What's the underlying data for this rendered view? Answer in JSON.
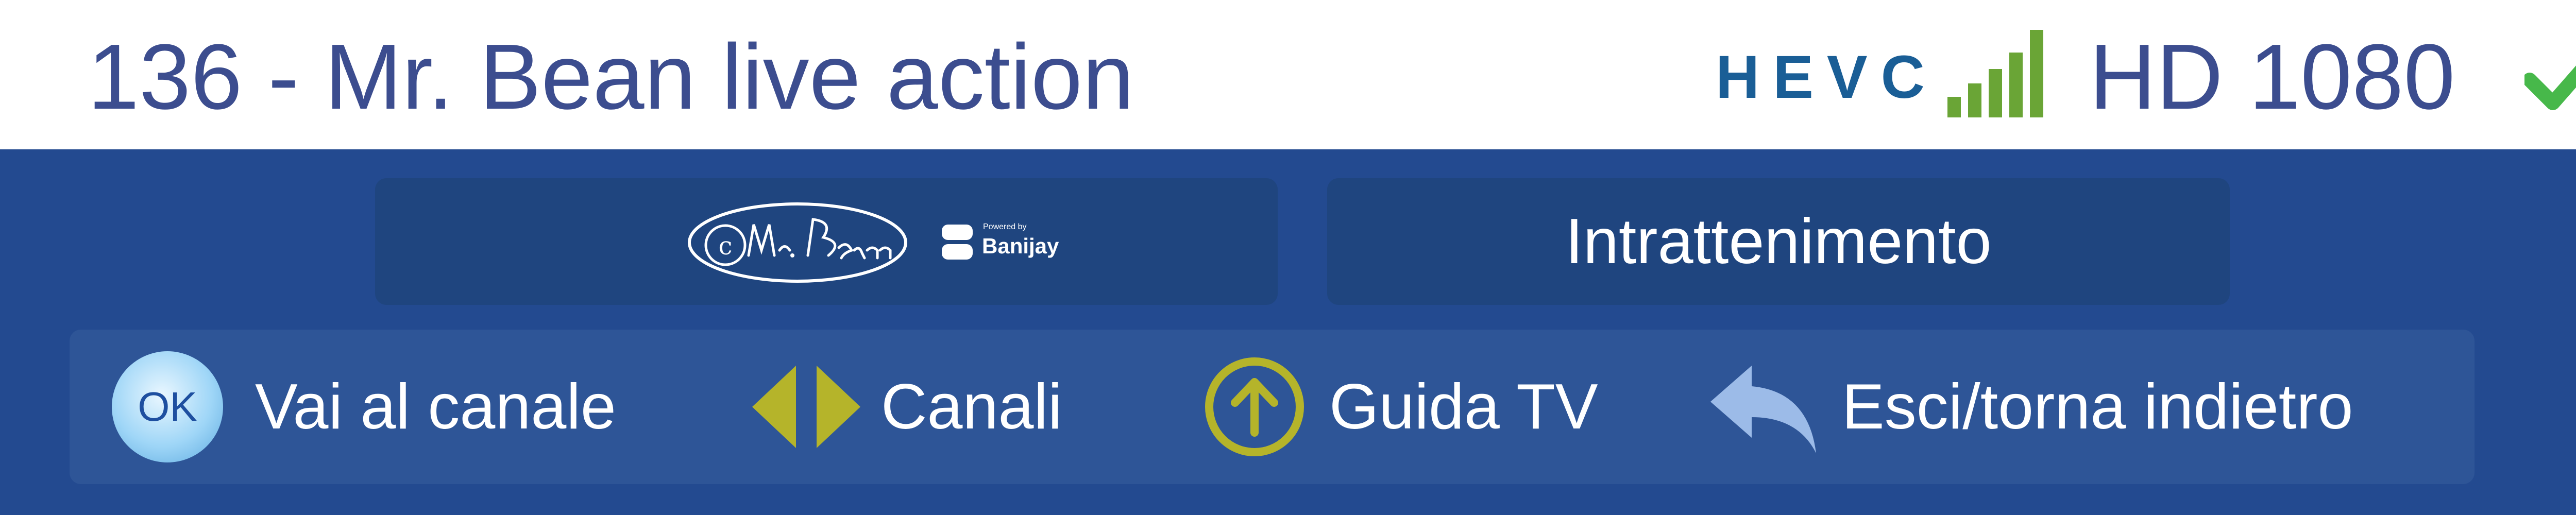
{
  "header": {
    "channel_title": "136 - Mr. Bean live action",
    "codec": "HEVC",
    "quality": "HD 1080",
    "signal_icon": "signal-strength-bars",
    "status_icon": "check-icon"
  },
  "info": {
    "program_logo": "Mr. Bean signature logo",
    "brand_small": "Powered by",
    "brand": "Banijay",
    "category": "Intrattenimento"
  },
  "nav": {
    "ok_label": "OK",
    "goto_channel": "Vai al canale",
    "channels": "Canali",
    "tv_guide": "Guida TV",
    "exit_back": "Esci/torna indietro"
  },
  "colors": {
    "title_text": "#3c4d8f",
    "codec": "#1a5e96",
    "panel": "#234a90",
    "box": "#1f457f",
    "nav_strip": "#2e5597",
    "accent_yellow": "#b5b42a",
    "signal_green": "#6aa536",
    "check_green": "#47b84a"
  }
}
